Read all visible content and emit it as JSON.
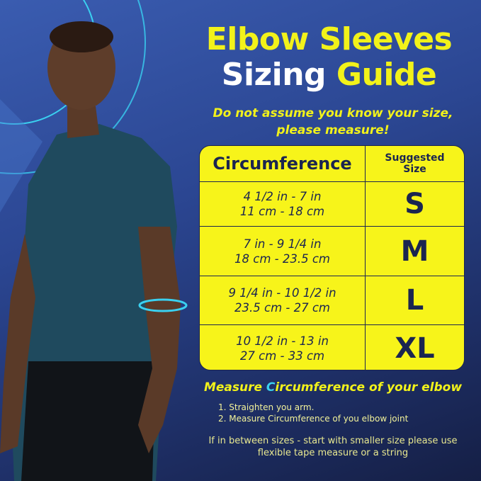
{
  "title": {
    "line1": "Elbow Sleeves",
    "line2_white": "Sizing ",
    "line2_yellow": "Guide"
  },
  "subtitle": [
    "Do not assume you know your size,",
    "please measure!"
  ],
  "table": {
    "header": {
      "circumference": "Circumference",
      "size": [
        "Suggested",
        "Size"
      ]
    },
    "rows": [
      {
        "in": "4 1/2 in - 7 in",
        "cm": "11 cm - 18 cm",
        "size": "S"
      },
      {
        "in": "7 in - 9 1/4 in",
        "cm": "18 cm - 23.5 cm",
        "size": "M"
      },
      {
        "in": "9 1/4 in - 10 1/2 in",
        "cm": "23.5 cm - 27 cm",
        "size": "L"
      },
      {
        "in": "10 1/2 in - 13 in",
        "cm": "27 cm - 33 cm",
        "size": "XL"
      }
    ]
  },
  "measure": {
    "prefix": "Measure ",
    "highlight": "C",
    "rest": "ircumference of your elbow"
  },
  "steps": [
    "1. Straighten you arm.",
    "2. Measure Circumference of you elbow joint"
  ],
  "note": [
    "If in between sizes - start with smaller size please use",
    "flexible tape measure or a string"
  ],
  "colors": {
    "accent_yellow": "#f2f21a",
    "navy": "#1b2550",
    "cyan": "#3ad0f0",
    "background": "#2b4692"
  }
}
